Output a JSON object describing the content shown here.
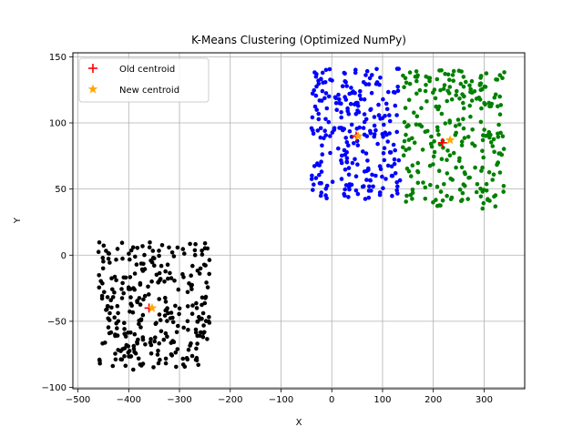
{
  "chart_data": {
    "type": "scatter",
    "title": "K-Means Clustering (Optimized NumPy)",
    "xlabel": "X",
    "ylabel": "Y",
    "xlim": [
      -510,
      380
    ],
    "ylim": [
      -101,
      153
    ],
    "grid": true,
    "legend_position": "top-left",
    "x_ticks": [
      -500,
      -400,
      -300,
      -200,
      -100,
      0,
      100,
      200,
      300
    ],
    "y_ticks": [
      -100,
      -50,
      0,
      50,
      100,
      150
    ],
    "x_tick_labels": [
      "−500",
      "−400",
      "−300",
      "−200",
      "−100",
      "0",
      "100",
      "200",
      "300"
    ],
    "y_tick_labels": [
      "−100",
      "−50",
      "0",
      "50",
      "100",
      "150"
    ],
    "clusters": [
      {
        "color": "#000000",
        "count": 300,
        "x_range": [
          -460,
          -240
        ],
        "y_range": [
          -88,
          10
        ]
      },
      {
        "color": "#0000ff",
        "count": 260,
        "x_range": [
          -40,
          135
        ],
        "y_range": [
          42,
          141
        ]
      },
      {
        "color": "#008000",
        "count": 260,
        "x_range": [
          140,
          340
        ],
        "y_range": [
          35,
          140
        ]
      }
    ],
    "legend": [
      {
        "label": "Old centroid",
        "marker": "+",
        "color": "#ff0000"
      },
      {
        "label": "New centroid",
        "marker": "*",
        "color": "#ffa500"
      }
    ],
    "old_centroids": [
      {
        "x": -360,
        "y": -40
      },
      {
        "x": 48,
        "y": 90
      },
      {
        "x": 218,
        "y": 85
      }
    ],
    "new_centroids": [
      {
        "x": -354,
        "y": -40
      },
      {
        "x": 52,
        "y": 90
      },
      {
        "x": 233,
        "y": 87
      }
    ]
  }
}
